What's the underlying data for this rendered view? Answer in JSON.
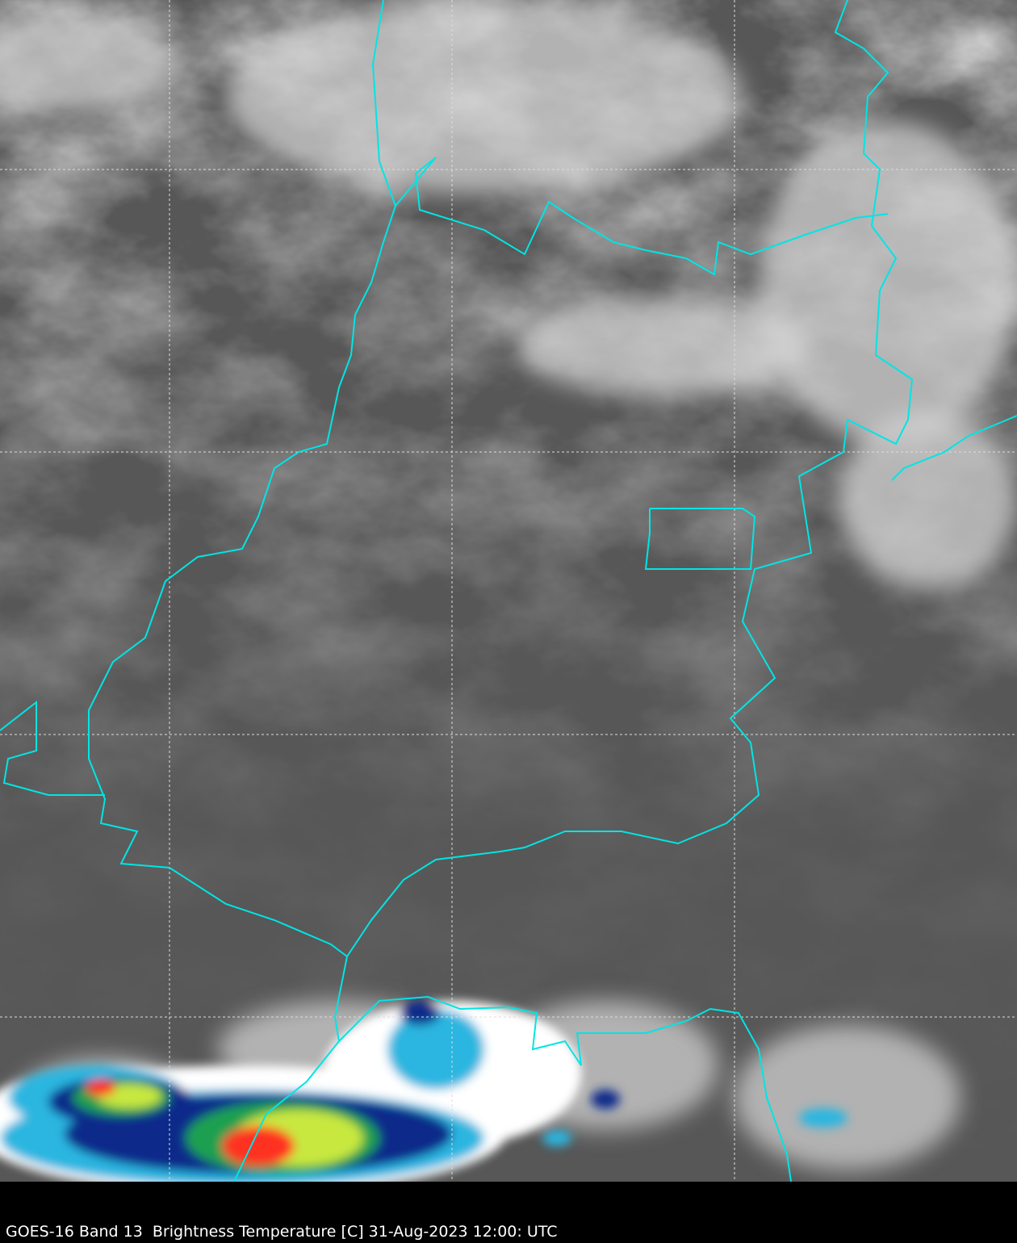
{
  "caption": "GOES-16 Band 13  Brightness Temperature [C] 31-Aug-2023 12:00: UTC",
  "image": {
    "type": "satellite infrared imagery",
    "overlay": "country and state borders",
    "grid": "dashed lat/lon gridlines",
    "colors": {
      "border": "#00e5e5",
      "background": "#555555",
      "grid": "#dddddd",
      "caption_bar": "#000000"
    }
  }
}
